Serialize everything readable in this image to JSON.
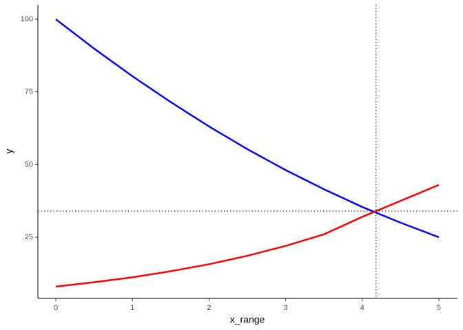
{
  "chart_data": {
    "type": "line",
    "x_label": "x_range",
    "y_label": "y",
    "x": [
      0,
      0.5,
      1,
      1.5,
      2,
      2.5,
      3,
      3.5,
      4,
      4.5,
      5
    ],
    "series": [
      {
        "color": "#0000ff",
        "values": [
          100,
          89.9,
          80.4,
          71.5,
          63.1,
          55.3,
          48.1,
          41.5,
          35.4,
          30,
          25
        ]
      },
      {
        "color": "#ff0000",
        "values": [
          8,
          9.5,
          11.2,
          13.3,
          15.7,
          18.6,
          22,
          26,
          32,
          37.5,
          43
        ]
      }
    ],
    "hline": 34,
    "vline": 4.18,
    "xlim": [
      -0.234,
      5.243
    ],
    "ylim": [
      3.95,
      104.97
    ],
    "xticks": [
      0,
      1,
      2,
      3,
      4,
      5
    ],
    "yticks": [
      25,
      50,
      75,
      100
    ],
    "grid": false
  }
}
